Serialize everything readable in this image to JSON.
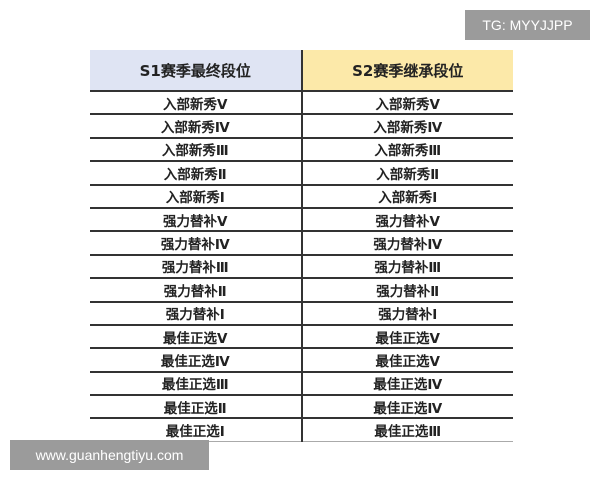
{
  "watermarks": {
    "tg": "TG: MYYJJPP",
    "url": "www.guanhengtiyu.com"
  },
  "colors": {
    "header_left": "#dfe4f3",
    "header_right": "#fce9a9"
  },
  "table": {
    "headers": [
      "S1赛季最终段位",
      "S2赛季继承段位"
    ],
    "rows": [
      [
        "入部新秀Ⅴ",
        "入部新秀Ⅴ"
      ],
      [
        "入部新秀Ⅳ",
        "入部新秀Ⅳ"
      ],
      [
        "入部新秀Ⅲ",
        "入部新秀Ⅲ"
      ],
      [
        "入部新秀Ⅱ",
        "入部新秀Ⅱ"
      ],
      [
        "入部新秀Ⅰ",
        "入部新秀Ⅰ"
      ],
      [
        "强力替补Ⅴ",
        "强力替补Ⅴ"
      ],
      [
        "强力替补Ⅳ",
        "强力替补Ⅳ"
      ],
      [
        "强力替补Ⅲ",
        "强力替补Ⅲ"
      ],
      [
        "强力替补Ⅱ",
        "强力替补Ⅱ"
      ],
      [
        "强力替补Ⅰ",
        "强力替补Ⅰ"
      ],
      [
        "最佳正选Ⅴ",
        "最佳正选Ⅴ"
      ],
      [
        "最佳正选Ⅳ",
        "最佳正选Ⅴ"
      ],
      [
        "最佳正选Ⅲ",
        "最佳正选Ⅳ"
      ],
      [
        "最佳正选Ⅱ",
        "最佳正选Ⅳ"
      ],
      [
        "最佳正选Ⅰ",
        "最佳正选Ⅲ"
      ]
    ]
  }
}
